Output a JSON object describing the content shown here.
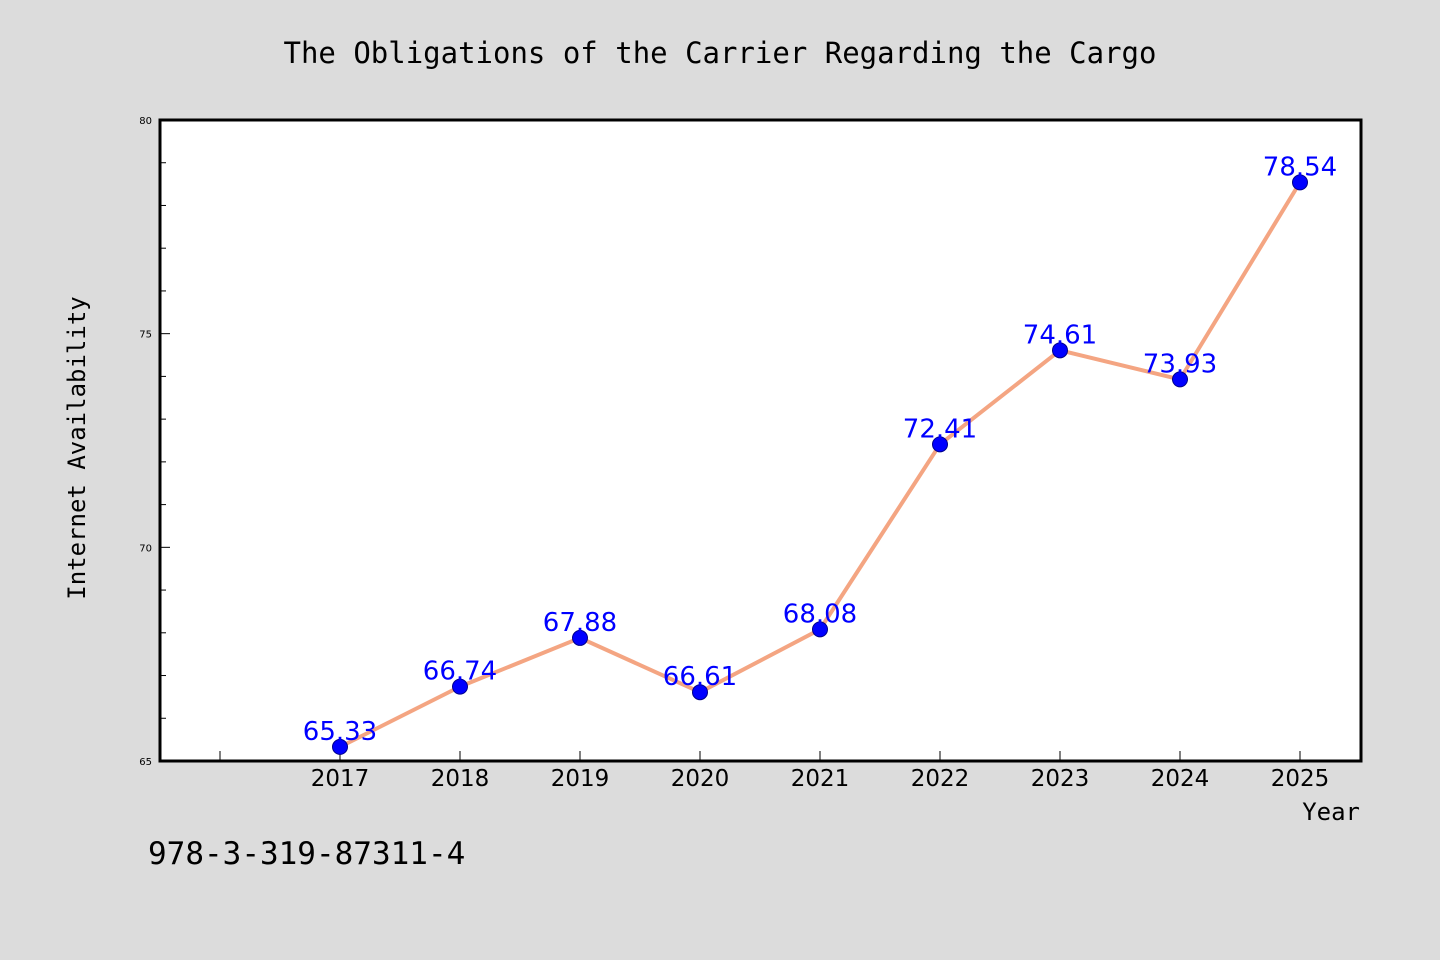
{
  "chart_data": {
    "type": "line",
    "title": "The Obligations of the Carrier Regarding the Cargo",
    "xlabel": "Year",
    "ylabel": "Internet Availability",
    "categories": [
      "2017",
      "2018",
      "2019",
      "2020",
      "2021",
      "2022",
      "2023",
      "2024",
      "2025"
    ],
    "series": [
      {
        "values": [
          65.33,
          66.74,
          67.88,
          66.61,
          68.08,
          72.41,
          74.61,
          73.93,
          78.54
        ],
        "labels": [
          "65.33",
          "66.74",
          "67.88",
          "66.61",
          "68.08",
          "72.41",
          "74.61",
          "73.93",
          "78.54"
        ]
      }
    ],
    "ylim": [
      65,
      80
    ],
    "yticks": [
      "65",
      "70",
      "75",
      "80"
    ],
    "ytick_values": [
      65,
      70,
      75,
      80
    ],
    "yminor_step": 1,
    "grid": false,
    "colors": {
      "background": "#dcdcdc",
      "plot_area": "#ffffff",
      "line": "#f4a582",
      "marker": "#0000ff",
      "data_label": "#0000ff",
      "text": "#000000"
    }
  },
  "footer_text": "978-3-319-87311-4"
}
